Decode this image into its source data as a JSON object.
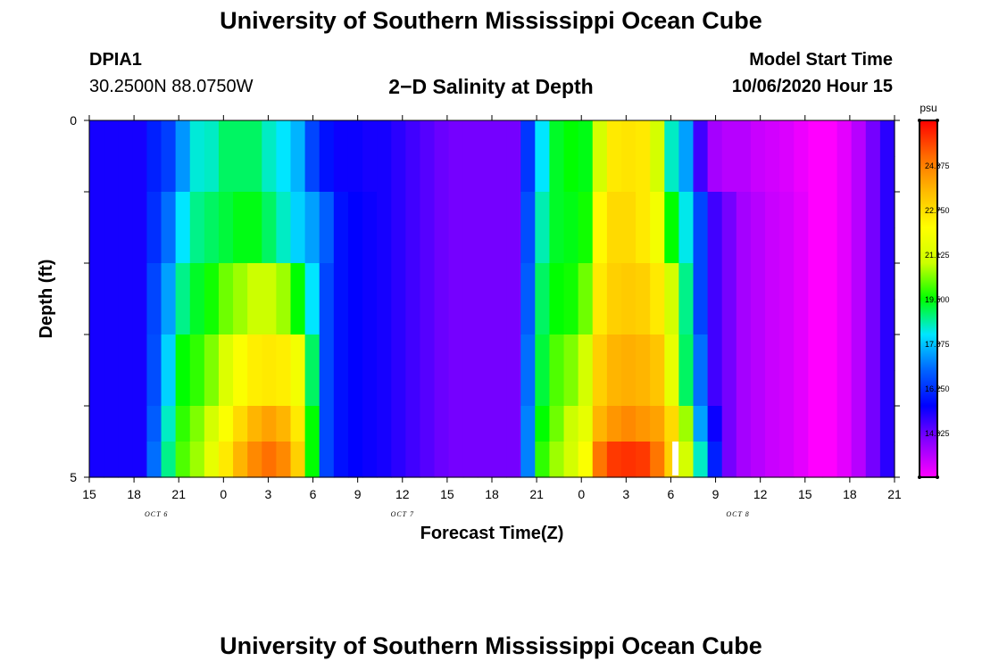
{
  "header": {
    "title": "University of Southern Mississippi Ocean Cube",
    "station_id": "DPIA1",
    "station_coords": "30.2500N 88.0750W",
    "subtitle": "2−D Salinity at Depth",
    "model_start_label": "Model Start Time",
    "model_start_value": "10/06/2020 Hour 15"
  },
  "footer": {
    "title": "University of Southern Mississippi Ocean Cube"
  },
  "chart_data": {
    "type": "heatmap",
    "title": "2−D Salinity at Depth",
    "xlabel": "Forecast Time(Z)",
    "ylabel": "Depth (ft)",
    "ylim": [
      0,
      5
    ],
    "y_tick_labels": [
      "0",
      "5"
    ],
    "x_start_hour": 0,
    "x_end_hour": 54,
    "x_tick_labels": [
      "15",
      "18",
      "21",
      "0",
      "3",
      "6",
      "9",
      "12",
      "15",
      "18",
      "21",
      "0",
      "3",
      "6",
      "9",
      "12",
      "15",
      "18",
      "21"
    ],
    "date_labels": [
      {
        "text": "OCT 6",
        "hour": 4.5
      },
      {
        "text": "OCT 7",
        "hour": 21
      },
      {
        "text": "OCT 8",
        "hour": 43.5
      }
    ],
    "colorbar": {
      "unit": "psu",
      "min": 13.0,
      "max": 26.0,
      "tick_labels": [
        "24.375",
        "22.750",
        "21.125",
        "19.500",
        "17.875",
        "16.250",
        "14.625"
      ],
      "colors": [
        "#ff00ff",
        "#8a00ff",
        "#0000ff",
        "#0064ff",
        "#00e6ff",
        "#00ff00",
        "#ccff00",
        "#ffff00",
        "#ffbb00",
        "#ff6a00",
        "#ff0000"
      ]
    },
    "depth_rows": [
      "0-0.5 ft",
      "0.5-1 ft",
      "1-1.5 ft",
      "1.5-2 ft",
      "2-2.5 ft",
      "2.5-3 ft",
      "3-3.5 ft",
      "3.5-4 ft",
      "4-4.5 ft",
      "4.5-5 ft"
    ],
    "salinity_psu": [
      [
        15.4,
        15.4,
        15.4,
        15.4,
        16.0,
        16.4,
        17.4,
        18.4,
        18.5,
        19.0,
        19.0,
        19.0,
        18.5,
        18.2,
        17.7,
        16.5,
        15.8,
        15.5,
        15.5,
        15.4,
        15.4,
        15.2,
        15.0,
        14.8,
        14.6,
        14.5,
        14.5,
        14.5,
        14.5,
        14.5,
        16.3,
        18.2,
        19.3,
        19.5,
        19.4,
        21.0,
        22.5,
        22.6,
        22.5,
        21.0,
        18.5,
        17.5,
        15.0,
        14.0,
        13.8,
        13.8,
        13.6,
        13.5,
        13.4,
        13.2,
        13.0,
        13.0,
        13.3,
        13.8,
        14.5,
        15.2
      ],
      [
        15.4,
        15.4,
        15.4,
        15.4,
        16.0,
        16.4,
        17.4,
        18.4,
        18.5,
        19.0,
        19.0,
        19.0,
        18.5,
        18.2,
        17.7,
        16.5,
        15.8,
        15.5,
        15.5,
        15.4,
        15.4,
        15.2,
        15.0,
        14.8,
        14.6,
        14.5,
        14.5,
        14.5,
        14.5,
        14.5,
        16.3,
        18.2,
        19.3,
        19.5,
        19.4,
        21.0,
        22.5,
        22.6,
        22.5,
        21.0,
        18.5,
        17.5,
        15.0,
        14.0,
        13.8,
        13.8,
        13.6,
        13.5,
        13.4,
        13.2,
        13.0,
        13.0,
        13.3,
        13.8,
        14.5,
        15.2
      ],
      [
        15.4,
        15.4,
        15.4,
        15.4,
        16.2,
        17.0,
        18.2,
        18.8,
        19.0,
        19.2,
        19.4,
        19.4,
        19.0,
        18.5,
        18.0,
        17.5,
        16.8,
        15.8,
        15.6,
        15.5,
        15.4,
        15.2,
        15.0,
        14.8,
        14.6,
        14.5,
        14.5,
        14.5,
        14.5,
        14.5,
        16.6,
        18.6,
        19.3,
        19.4,
        19.6,
        22.2,
        22.8,
        22.8,
        22.5,
        21.8,
        19.5,
        18.3,
        16.5,
        15.0,
        14.5,
        14.0,
        13.8,
        13.6,
        13.5,
        13.3,
        13.0,
        13.0,
        13.3,
        13.8,
        14.5,
        15.2
      ],
      [
        15.4,
        15.4,
        15.4,
        15.4,
        16.2,
        17.0,
        18.2,
        18.8,
        19.0,
        19.2,
        19.4,
        19.4,
        19.0,
        18.5,
        18.0,
        17.5,
        16.8,
        15.8,
        15.6,
        15.5,
        15.4,
        15.2,
        15.0,
        14.8,
        14.6,
        14.5,
        14.5,
        14.5,
        14.5,
        14.5,
        16.6,
        18.6,
        19.3,
        19.4,
        19.6,
        22.2,
        22.8,
        22.8,
        22.5,
        21.8,
        19.5,
        18.3,
        16.5,
        15.0,
        14.5,
        14.0,
        13.8,
        13.6,
        13.5,
        13.3,
        13.0,
        13.0,
        13.3,
        13.8,
        14.5,
        15.2
      ],
      [
        15.4,
        15.4,
        15.4,
        15.4,
        16.5,
        17.5,
        18.8,
        19.3,
        19.6,
        20.2,
        20.5,
        20.8,
        20.8,
        20.5,
        19.5,
        18.2,
        16.5,
        15.8,
        15.6,
        15.5,
        15.4,
        15.2,
        15.0,
        14.8,
        14.6,
        14.5,
        14.5,
        14.5,
        14.5,
        14.5,
        16.8,
        19.0,
        19.5,
        19.6,
        20.2,
        22.5,
        23.0,
        23.1,
        23.0,
        22.5,
        21.0,
        18.8,
        16.5,
        15.0,
        14.5,
        14.0,
        13.8,
        13.6,
        13.5,
        13.3,
        13.0,
        13.0,
        13.3,
        13.8,
        14.5,
        15.2
      ],
      [
        15.4,
        15.4,
        15.4,
        15.4,
        16.5,
        17.5,
        18.8,
        19.3,
        19.6,
        20.2,
        20.5,
        20.8,
        20.8,
        20.5,
        19.5,
        18.2,
        16.5,
        15.8,
        15.6,
        15.5,
        15.4,
        15.2,
        15.0,
        14.8,
        14.6,
        14.5,
        14.5,
        14.5,
        14.5,
        14.5,
        16.8,
        19.0,
        19.5,
        19.6,
        20.2,
        22.5,
        23.0,
        23.1,
        23.0,
        22.5,
        21.0,
        18.8,
        16.5,
        15.0,
        14.5,
        14.0,
        13.8,
        13.6,
        13.5,
        13.3,
        13.0,
        13.0,
        13.3,
        13.8,
        14.5,
        15.2
      ],
      [
        15.4,
        15.4,
        15.4,
        15.4,
        16.6,
        18.0,
        19.5,
        19.8,
        20.3,
        21.2,
        22.0,
        22.4,
        22.5,
        22.4,
        21.8,
        19.0,
        16.5,
        15.8,
        15.6,
        15.5,
        15.4,
        15.2,
        15.0,
        14.8,
        14.6,
        14.5,
        14.5,
        14.5,
        14.5,
        14.5,
        17.0,
        19.2,
        20.0,
        20.3,
        21.0,
        23.0,
        23.5,
        23.6,
        23.5,
        23.2,
        21.5,
        19.0,
        17.0,
        15.0,
        14.5,
        14.0,
        13.8,
        13.6,
        13.5,
        13.3,
        13.0,
        13.0,
        13.3,
        13.8,
        14.5,
        15.2
      ],
      [
        15.4,
        15.4,
        15.4,
        15.4,
        16.6,
        18.0,
        19.5,
        19.8,
        20.3,
        21.2,
        22.0,
        22.4,
        22.5,
        22.4,
        21.8,
        19.0,
        16.5,
        15.8,
        15.6,
        15.5,
        15.4,
        15.2,
        15.0,
        14.8,
        14.6,
        14.5,
        14.5,
        14.5,
        14.5,
        14.5,
        17.0,
        19.2,
        20.0,
        20.3,
        21.0,
        23.0,
        23.5,
        23.6,
        23.5,
        23.2,
        21.5,
        19.0,
        17.0,
        15.0,
        14.5,
        14.0,
        13.8,
        13.6,
        13.5,
        13.3,
        13.0,
        13.0,
        13.3,
        13.8,
        14.5,
        15.2
      ],
      [
        15.4,
        15.4,
        15.4,
        15.4,
        16.8,
        18.5,
        19.8,
        20.3,
        21.0,
        22.0,
        22.8,
        23.5,
        23.8,
        23.5,
        22.5,
        19.5,
        16.5,
        15.8,
        15.6,
        15.5,
        15.4,
        15.2,
        15.0,
        14.8,
        14.6,
        14.5,
        14.5,
        14.5,
        14.5,
        14.5,
        17.2,
        19.5,
        20.2,
        20.8,
        21.5,
        23.5,
        24.0,
        24.2,
        24.0,
        23.8,
        22.8,
        20.5,
        17.5,
        15.5,
        14.5,
        14.0,
        13.8,
        13.6,
        13.5,
        13.3,
        13.0,
        13.0,
        13.3,
        13.8,
        14.5,
        15.2
      ],
      [
        15.4,
        15.4,
        15.4,
        15.4,
        17.0,
        18.8,
        20.0,
        20.5,
        21.5,
        22.5,
        23.5,
        24.2,
        24.6,
        24.2,
        23.0,
        19.5,
        16.5,
        15.8,
        15.6,
        15.5,
        15.4,
        15.2,
        15.0,
        14.8,
        14.6,
        14.5,
        14.5,
        14.5,
        14.5,
        14.5,
        17.2,
        19.8,
        20.5,
        21.0,
        22.0,
        24.5,
        25.3,
        25.4,
        25.3,
        24.5,
        23.0,
        21.0,
        18.5,
        16.0,
        14.5,
        14.0,
        13.8,
        13.6,
        13.5,
        13.3,
        13.0,
        13.0,
        13.3,
        13.8,
        14.5,
        15.2
      ]
    ],
    "missing_data_note": "white gap at hour 39.2 in depth 4.5-5 ft"
  }
}
